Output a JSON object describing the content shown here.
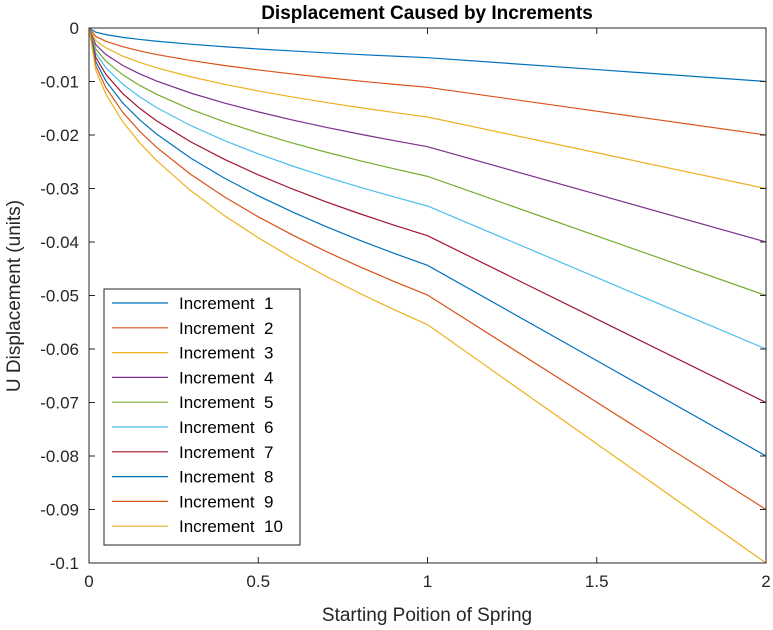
{
  "chart_data": {
    "type": "line",
    "title": "Displacement Caused by Increments",
    "xlabel": "Starting Poition of Spring",
    "ylabel": "U Displacement (units)",
    "xlim": [
      0,
      2
    ],
    "ylim": [
      -0.1,
      0
    ],
    "xticks": [
      0,
      0.5,
      1,
      1.5,
      2
    ],
    "xtick_labels": [
      "0",
      "0.5",
      "1",
      "1.5",
      "2"
    ],
    "yticks": [
      0,
      -0.01,
      -0.02,
      -0.03,
      -0.04,
      -0.05,
      -0.06,
      -0.07,
      -0.08,
      -0.09,
      -0.1
    ],
    "ytick_labels": [
      "0",
      "-0.01",
      "-0.02",
      "-0.03",
      "-0.04",
      "-0.05",
      "-0.06",
      "-0.07",
      "-0.08",
      "-0.09",
      "-0.1"
    ],
    "grid": false,
    "legend_position": "bottom-left",
    "x": [
      0,
      0.02,
      0.05,
      0.1,
      0.15,
      0.2,
      0.3,
      0.4,
      0.5,
      0.6,
      0.7,
      0.8,
      0.9,
      1,
      1.5,
      2
    ],
    "series": [
      {
        "name": "Increment  1",
        "color": "#0072BD",
        "values": [
          0,
          -0.00079,
          -0.00124,
          -0.00175,
          -0.00214,
          -0.00248,
          -0.00303,
          -0.0035,
          -0.00392,
          -0.00429,
          -0.00464,
          -0.00496,
          -0.00526,
          -0.00555,
          -0.00777,
          -0.01
        ]
      },
      {
        "name": "Increment  2",
        "color": "#D95319",
        "values": [
          0,
          -0.00157,
          -0.00248,
          -0.0035,
          -0.00429,
          -0.00496,
          -0.00607,
          -0.00701,
          -0.00784,
          -0.00859,
          -0.00928,
          -0.00992,
          -0.01052,
          -0.01109,
          -0.01555,
          -0.02
        ]
      },
      {
        "name": "Increment  3",
        "color": "#EDB120",
        "values": [
          0,
          -0.00236,
          -0.00372,
          -0.00526,
          -0.00644,
          -0.00744,
          -0.00911,
          -0.01052,
          -0.01176,
          -0.01288,
          -0.01392,
          -0.01488,
          -0.01578,
          -0.01664,
          -0.02332,
          -0.03
        ]
      },
      {
        "name": "Increment  4",
        "color": "#7E2F8E",
        "values": [
          0,
          -0.00314,
          -0.00496,
          -0.00701,
          -0.00859,
          -0.00992,
          -0.01215,
          -0.01403,
          -0.01568,
          -0.01718,
          -0.01856,
          -0.01984,
          -0.02104,
          -0.02218,
          -0.03109,
          -0.04
        ]
      },
      {
        "name": "Increment  5",
        "color": "#77AC30",
        "values": [
          0,
          -0.00393,
          -0.0062,
          -0.00877,
          -0.01074,
          -0.0124,
          -0.01519,
          -0.01754,
          -0.0196,
          -0.02148,
          -0.0232,
          -0.0248,
          -0.0263,
          -0.02773,
          -0.03886,
          -0.05
        ]
      },
      {
        "name": "Increment  6",
        "color": "#4DBEEE",
        "values": [
          0,
          -0.00471,
          -0.00744,
          -0.01052,
          -0.01288,
          -0.01488,
          -0.01822,
          -0.02104,
          -0.02352,
          -0.02577,
          -0.02784,
          -0.02976,
          -0.03156,
          -0.03327,
          -0.04664,
          -0.06
        ]
      },
      {
        "name": "Increment  7",
        "color": "#A2142F",
        "values": [
          0,
          -0.0055,
          -0.00868,
          -0.01228,
          -0.01503,
          -0.01736,
          -0.02126,
          -0.02455,
          -0.02745,
          -0.03007,
          -0.03248,
          -0.03472,
          -0.03683,
          -0.03882,
          -0.05441,
          -0.07
        ]
      },
      {
        "name": "Increment  8",
        "color": "#0072BD",
        "values": [
          0,
          -0.00629,
          -0.00992,
          -0.01403,
          -0.01718,
          -0.01984,
          -0.0243,
          -0.02806,
          -0.03137,
          -0.03436,
          -0.03712,
          -0.03968,
          -0.04209,
          -0.04436,
          -0.06218,
          -0.08
        ]
      },
      {
        "name": "Increment  9",
        "color": "#D95319",
        "values": [
          0,
          -0.00707,
          -0.01116,
          -0.01578,
          -0.01933,
          -0.02232,
          -0.02734,
          -0.03157,
          -0.03529,
          -0.03866,
          -0.04176,
          -0.04464,
          -0.04735,
          -0.04991,
          -0.06995,
          -0.09
        ]
      },
      {
        "name": "Increment  10",
        "color": "#EDB120",
        "values": [
          0,
          -0.00786,
          -0.0124,
          -0.01754,
          -0.02148,
          -0.0248,
          -0.03038,
          -0.03508,
          -0.03921,
          -0.04296,
          -0.0464,
          -0.0496,
          -0.05261,
          -0.05545,
          -0.07773,
          -0.1
        ]
      }
    ]
  }
}
